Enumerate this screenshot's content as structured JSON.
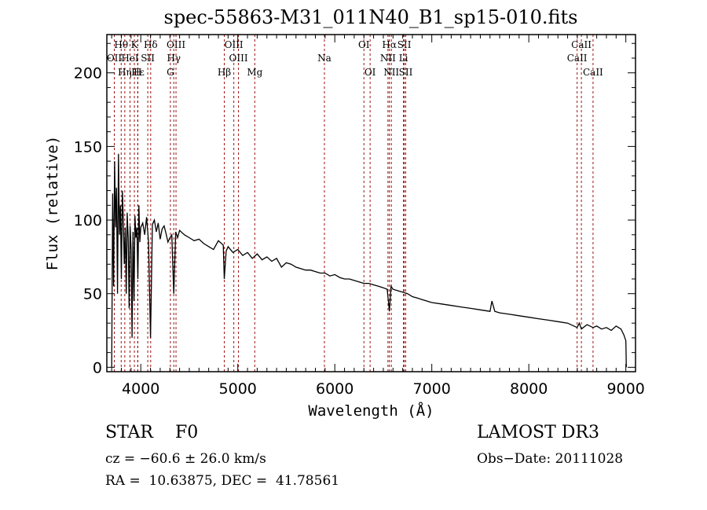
{
  "chart_data": {
    "type": "line",
    "title": "spec-55863-M31_011N40_B1_sp15-010.fits",
    "xlabel": "Wavelength (Å)",
    "ylabel": "Flux (relative)",
    "xlim": [
      3650,
      9100
    ],
    "ylim": [
      -3,
      226
    ],
    "grid": false,
    "x_ticks": [
      4000,
      5000,
      6000,
      7000,
      8000,
      9000
    ],
    "x_tick_labels": [
      "4000",
      "5000",
      "6000",
      "7000",
      "8000",
      "9000"
    ],
    "y_ticks": [
      0,
      50,
      100,
      150,
      200
    ],
    "y_tick_labels": [
      "0",
      "50",
      "100",
      "150",
      "200"
    ],
    "line_color": "#000000",
    "marker_color": "#a01010",
    "series": [
      {
        "name": "flux",
        "x": [
          3700,
          3710,
          3720,
          3730,
          3740,
          3750,
          3760,
          3770,
          3780,
          3790,
          3800,
          3810,
          3820,
          3830,
          3840,
          3850,
          3860,
          3870,
          3880,
          3890,
          3900,
          3910,
          3920,
          3930,
          3940,
          3950,
          3960,
          3970,
          3980,
          3990,
          4000,
          4020,
          4040,
          4060,
          4080,
          4100,
          4120,
          4140,
          4160,
          4180,
          4200,
          4220,
          4240,
          4260,
          4280,
          4300,
          4320,
          4340,
          4360,
          4380,
          4400,
          4450,
          4500,
          4550,
          4600,
          4650,
          4700,
          4750,
          4800,
          4850,
          4861,
          4880,
          4900,
          4950,
          5000,
          5050,
          5100,
          5150,
          5200,
          5250,
          5300,
          5350,
          5400,
          5450,
          5500,
          5550,
          5600,
          5650,
          5700,
          5750,
          5800,
          5850,
          5900,
          5950,
          6000,
          6050,
          6100,
          6150,
          6200,
          6250,
          6300,
          6350,
          6400,
          6450,
          6500,
          6540,
          6563,
          6580,
          6600,
          6650,
          6700,
          6750,
          6800,
          6850,
          6900,
          6950,
          7000,
          7100,
          7200,
          7300,
          7400,
          7500,
          7600,
          7620,
          7650,
          7700,
          7800,
          7900,
          8000,
          8100,
          8200,
          8300,
          8400,
          8498,
          8520,
          8542,
          8600,
          8662,
          8700,
          8750,
          8800,
          8850,
          8900,
          8950,
          8980,
          9000,
          9005
        ],
        "y": [
          0,
          118,
          55,
          140,
          95,
          122,
          50,
          145,
          90,
          110,
          60,
          120,
          100,
          70,
          95,
          50,
          105,
          88,
          40,
          96,
          80,
          20,
          92,
          45,
          103,
          88,
          95,
          60,
          110,
          85,
          95,
          98,
          90,
          102,
          85,
          20,
          97,
          100,
          92,
          98,
          87,
          94,
          96,
          91,
          85,
          88,
          90,
          50,
          92,
          88,
          93,
          90,
          88,
          86,
          87,
          84,
          82,
          80,
          86,
          83,
          60,
          79,
          82,
          78,
          80,
          76,
          78,
          74,
          77,
          73,
          75,
          72,
          74,
          68,
          71,
          70,
          68,
          67,
          66,
          66,
          65,
          64,
          64,
          62,
          63,
          61,
          60,
          60,
          59,
          58,
          57,
          57,
          56,
          55,
          54,
          53,
          38,
          55,
          53,
          52,
          51,
          50,
          48,
          47,
          46,
          45,
          44,
          43,
          42,
          41,
          40,
          39,
          38,
          45,
          38,
          37,
          36,
          35,
          34,
          33,
          32,
          31,
          30,
          27,
          30,
          26,
          29,
          27,
          28,
          26,
          27,
          25,
          28,
          26,
          22,
          18,
          0
        ]
      }
    ],
    "line_markers": [
      {
        "label": "Hθ",
        "wavelength": 3798,
        "row": 1
      },
      {
        "label": "K",
        "wavelength": 3934,
        "row": 1
      },
      {
        "label": "Hδ",
        "wavelength": 4102,
        "row": 1
      },
      {
        "label": "OIII",
        "wavelength": 4363,
        "row": 1
      },
      {
        "label": "OIII",
        "wavelength": 4959,
        "row": 1
      },
      {
        "label": "OI",
        "wavelength": 6300,
        "row": 1
      },
      {
        "label": "Hα",
        "wavelength": 6563,
        "row": 1
      },
      {
        "label": "SII",
        "wavelength": 6716,
        "row": 1
      },
      {
        "label": "CaII",
        "wavelength": 8542,
        "row": 1
      },
      {
        "label": "OII",
        "wavelength": 3727,
        "row": 2
      },
      {
        "label": "HeI",
        "wavelength": 3889,
        "row": 2
      },
      {
        "label": "SII",
        "wavelength": 4072,
        "row": 2
      },
      {
        "label": "Hγ",
        "wavelength": 4340,
        "row": 2
      },
      {
        "label": "OIII",
        "wavelength": 5007,
        "row": 2
      },
      {
        "label": "Na",
        "wavelength": 5893,
        "row": 2
      },
      {
        "label": "NII",
        "wavelength": 6548,
        "row": 2
      },
      {
        "label": "Li",
        "wavelength": 6708,
        "row": 2
      },
      {
        "label": "CaII",
        "wavelength": 8498,
        "row": 2
      },
      {
        "label": "Hε",
        "wavelength": 3970,
        "row": 3
      },
      {
        "label": "Hη",
        "wavelength": 3835,
        "row": 3
      },
      {
        "label": "H",
        "wavelength": 3968,
        "row": 3
      },
      {
        "label": "G",
        "wavelength": 4305,
        "row": 3
      },
      {
        "label": "Hβ",
        "wavelength": 4861,
        "row": 3
      },
      {
        "label": "Mg",
        "wavelength": 5175,
        "row": 3
      },
      {
        "label": "OI",
        "wavelength": 6364,
        "row": 3
      },
      {
        "label": "NII",
        "wavelength": 6583,
        "row": 3
      },
      {
        "label": "SII",
        "wavelength": 6731,
        "row": 3
      },
      {
        "label": "CaII",
        "wavelength": 8662,
        "row": 3
      }
    ]
  },
  "info": {
    "object_class": "STAR    F0",
    "redshift": "cz = −60.6 ± 26.0 km/s",
    "coords": "RA =  10.63875, DEC =  41.78561",
    "survey": "LAMOST DR3",
    "obs_date": "Obs−Date: 20111028"
  }
}
